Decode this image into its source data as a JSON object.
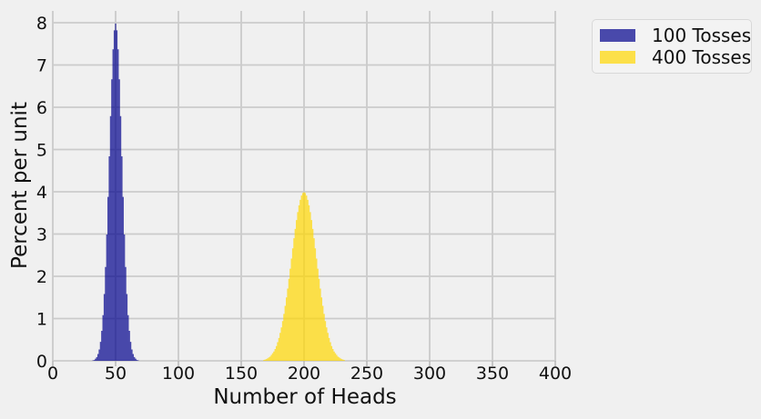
{
  "figure": {
    "background_color": "#f0f0f0",
    "grid_color": "#cbcbcb",
    "tick_mark_color": "#b5b5b5",
    "text_color": "#111111"
  },
  "legend": {
    "position": "upper-right-outside",
    "items": [
      {
        "label": "100 Tosses",
        "color": "#00008b",
        "opacity": 0.7
      },
      {
        "label": "400 Tosses",
        "color": "#ffd700",
        "opacity": 0.7
      }
    ]
  },
  "chart_data": {
    "type": "bar",
    "subtype": "histogram",
    "title": "",
    "xlabel": "Number of Heads",
    "ylabel": "Percent per unit",
    "x_ticks": [
      0,
      50,
      100,
      150,
      200,
      250,
      300,
      350,
      400
    ],
    "y_ticks": [
      0,
      1,
      2,
      3,
      4,
      5,
      6,
      7,
      8
    ],
    "xlim": [
      0,
      401
    ],
    "ylim": [
      0,
      8.28
    ],
    "grid": true,
    "bin_width": 1,
    "series": [
      {
        "name": "100 Tosses",
        "color": "#00008b",
        "opacity": 0.7,
        "first_bin_center": 32,
        "values": [
          0.01,
          0.02,
          0.05,
          0.09,
          0.16,
          0.27,
          0.45,
          0.71,
          1.08,
          1.58,
          2.22,
          2.99,
          3.88,
          4.84,
          5.79,
          6.66,
          7.37,
          7.82,
          7.98,
          7.82,
          7.37,
          6.66,
          5.79,
          4.84,
          3.88,
          2.99,
          2.22,
          1.58,
          1.08,
          0.71,
          0.45,
          0.27,
          0.16,
          0.09,
          0.05,
          0.02,
          0.01
        ]
      },
      {
        "name": "400 Tosses",
        "color": "#ffd700",
        "opacity": 0.7,
        "first_bin_center": 168,
        "values": [
          0.02,
          0.03,
          0.04,
          0.06,
          0.08,
          0.1,
          0.14,
          0.18,
          0.22,
          0.28,
          0.35,
          0.44,
          0.54,
          0.66,
          0.79,
          0.94,
          1.11,
          1.3,
          1.5,
          1.71,
          1.94,
          2.18,
          2.42,
          2.66,
          2.9,
          3.12,
          3.33,
          3.52,
          3.68,
          3.81,
          3.91,
          3.97,
          3.99,
          3.97,
          3.91,
          3.81,
          3.68,
          3.52,
          3.33,
          3.12,
          2.9,
          2.66,
          2.42,
          2.18,
          1.94,
          1.71,
          1.5,
          1.3,
          1.11,
          0.94,
          0.79,
          0.66,
          0.54,
          0.44,
          0.35,
          0.28,
          0.22,
          0.18,
          0.14,
          0.1,
          0.08,
          0.06,
          0.04,
          0.03,
          0.02
        ]
      }
    ]
  }
}
